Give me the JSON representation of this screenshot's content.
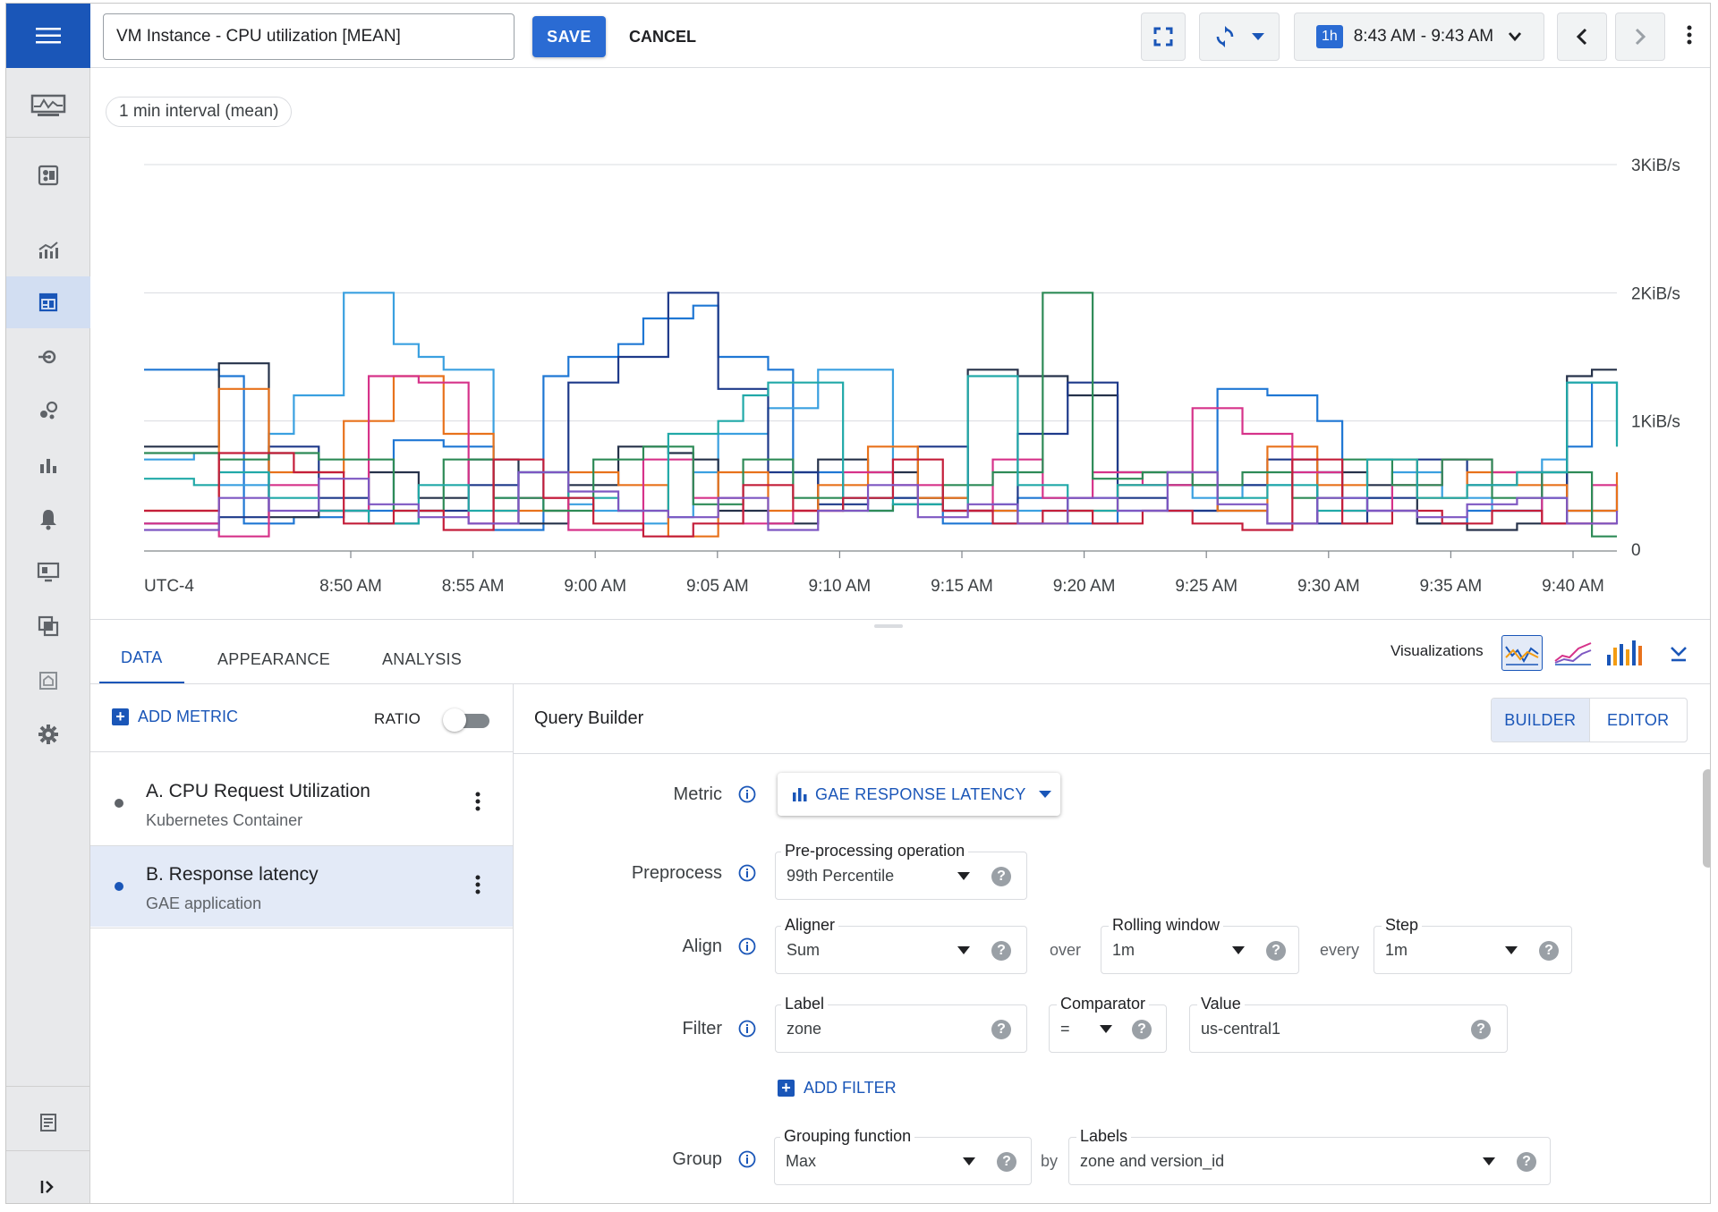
{
  "header": {
    "title_value": "VM Instance - CPU utilization [MEAN]",
    "save_label": "SAVE",
    "cancel_label": "CANCEL",
    "time_chip": "1h",
    "time_range": "8:43 AM - 9:43 AM"
  },
  "sidebar": {
    "items": [
      {
        "icon": "dashboard-icon"
      },
      {
        "icon": "metrics-explorer-icon"
      },
      {
        "icon": "dashboards-icon",
        "active": true
      },
      {
        "icon": "uptime-icon"
      },
      {
        "icon": "services-icon"
      },
      {
        "icon": "slo-icon"
      },
      {
        "icon": "alerting-icon"
      },
      {
        "icon": "monitor-icon"
      },
      {
        "icon": "groups-icon"
      },
      {
        "icon": "settings-home-icon"
      },
      {
        "icon": "settings-icon"
      }
    ],
    "bottom_icons": [
      "release-notes-icon",
      "collapse-icon"
    ]
  },
  "chart": {
    "interval_chip": "1 min interval (mean)"
  },
  "chart_data": {
    "type": "line",
    "title": "",
    "xlabel": "",
    "ylabel": "",
    "timezone_label": "UTC-4",
    "x_ticks": [
      "8:50 AM",
      "8:55 AM",
      "9:00 AM",
      "9:05 AM",
      "9:10 AM",
      "9:15 AM",
      "9:20 AM",
      "9:25 AM",
      "9:30 AM",
      "9:35 AM",
      "9:40 AM"
    ],
    "y_ticks": [
      "0",
      "1KiB/s",
      "2KiB/s",
      "3KiB/s"
    ],
    "ylim": [
      0,
      3
    ],
    "y_unit": "KiB/s",
    "x_unit_minutes_from": "8:43 AM",
    "grid": true,
    "step": true,
    "series": [
      {
        "color": "#1f77d4",
        "values": [
          1.4,
          1.4,
          1.4,
          1.35,
          0.2,
          0.2,
          0.25,
          0.25,
          0.3,
          0.3,
          0.85,
          0.85,
          0.8,
          0.8,
          0.15,
          0.15,
          1.35,
          1.5,
          1.5,
          1.6,
          1.8,
          1.8,
          1.9,
          1.5,
          1.5,
          1.4,
          0.6,
          0.6,
          0.4,
          0.3,
          0.35,
          0.35,
          0.2,
          0.2,
          0.2,
          0.4,
          0.4,
          0.2,
          0.2,
          0.3,
          0.3,
          0.3,
          0.3,
          1.25,
          1.25,
          1.2,
          1.2,
          1.0,
          0.4,
          0.3,
          0.3,
          0.2,
          0.2,
          0.3,
          0.3,
          0.3,
          0.4,
          0.8,
          1.3,
          1.3
        ]
      },
      {
        "color": "#3aa0e0",
        "values": [
          0.7,
          0.7,
          0.75,
          0.5,
          0.5,
          0.9,
          1.2,
          1.2,
          2.0,
          2.0,
          1.6,
          1.5,
          1.4,
          1.4,
          0.4,
          0.4,
          0.3,
          0.35,
          0.3,
          0.3,
          0.2,
          0.25,
          0.6,
          0.9,
          0.9,
          1.1,
          1.1,
          1.4,
          1.4,
          1.4,
          0.4,
          0.4,
          0.3,
          0.3,
          0.35,
          0.3,
          0.3,
          0.4,
          0.4,
          0.5,
          0.5,
          0.5,
          0.4,
          0.4,
          0.5,
          0.5,
          0.6,
          0.6,
          0.4,
          0.4,
          0.6,
          0.6,
          0.4,
          0.4,
          0.3,
          0.3,
          0.7,
          1.3,
          1.3,
          0.85
        ]
      },
      {
        "color": "#26324a",
        "values": [
          0.8,
          0.8,
          0.8,
          1.45,
          1.45,
          0.25,
          0.25,
          0.3,
          0.3,
          0.6,
          0.6,
          0.4,
          0.4,
          0.7,
          0.7,
          0.2,
          0.2,
          0.5,
          0.5,
          0.8,
          0.8,
          0.75,
          0.7,
          0.3,
          0.3,
          0.2,
          0.2,
          0.7,
          0.7,
          0.6,
          0.6,
          0.4,
          0.4,
          1.4,
          1.4,
          1.35,
          1.35,
          1.2,
          1.2,
          0.6,
          0.6,
          0.5,
          0.5,
          0.3,
          0.3,
          0.2,
          0.2,
          0.6,
          0.6,
          0.5,
          0.5,
          0.2,
          0.2,
          0.15,
          0.15,
          0.2,
          0.2,
          1.35,
          1.4,
          1.4
        ]
      },
      {
        "color": "#1e3a8a",
        "values": [
          0.2,
          0.2,
          0.2,
          0.25,
          0.25,
          0.8,
          0.8,
          0.4,
          0.4,
          0.2,
          0.2,
          0.3,
          0.3,
          0.5,
          0.5,
          0.6,
          0.6,
          1.3,
          1.3,
          1.5,
          1.5,
          2.0,
          2.0,
          1.25,
          1.25,
          0.6,
          0.6,
          0.35,
          0.35,
          0.4,
          0.4,
          0.8,
          0.8,
          0.3,
          0.3,
          0.9,
          0.9,
          1.3,
          1.3,
          0.4,
          0.4,
          0.3,
          0.3,
          0.5,
          0.5,
          0.7,
          0.7,
          0.2,
          0.2,
          0.4,
          0.4,
          0.7,
          0.7,
          0.5,
          0.5,
          0.6,
          0.6,
          0.3,
          0.3,
          0.5
        ]
      },
      {
        "color": "#e8721c",
        "values": [
          0.3,
          0.3,
          0.3,
          1.25,
          1.25,
          0.6,
          0.6,
          0.6,
          1.0,
          1.0,
          1.35,
          1.35,
          0.9,
          0.9,
          0.3,
          0.3,
          0.3,
          0.6,
          0.6,
          0.5,
          0.5,
          0.1,
          0.1,
          0.6,
          0.6,
          0.3,
          0.3,
          0.5,
          0.5,
          0.8,
          0.8,
          0.4,
          0.4,
          0.3,
          0.3,
          0.2,
          0.2,
          0.3,
          0.3,
          0.5,
          0.5,
          0.6,
          0.6,
          0.3,
          0.3,
          0.8,
          0.8,
          0.5,
          0.5,
          0.7,
          0.7,
          0.4,
          0.4,
          0.6,
          0.6,
          0.5,
          0.5,
          0.3,
          0.3,
          0.6
        ]
      },
      {
        "color": "#d6338a",
        "values": [
          0.2,
          0.2,
          0.2,
          0.1,
          0.1,
          0.5,
          0.5,
          0.3,
          0.3,
          1.35,
          1.35,
          1.3,
          1.3,
          0.2,
          0.2,
          0.4,
          0.4,
          0.15,
          0.15,
          0.15,
          0.7,
          0.7,
          0.4,
          0.4,
          0.2,
          0.2,
          0.3,
          0.3,
          0.6,
          0.6,
          0.5,
          0.5,
          0.3,
          0.3,
          0.7,
          0.7,
          0.4,
          0.4,
          0.6,
          0.6,
          0.5,
          0.5,
          1.1,
          1.1,
          0.9,
          0.9,
          0.6,
          0.6,
          0.3,
          0.3,
          0.5,
          0.5,
          0.7,
          0.7,
          0.6,
          0.6,
          0.2,
          0.2,
          0.5,
          0.5
        ]
      },
      {
        "color": "#2e8b57",
        "values": [
          0.75,
          0.75,
          0.75,
          0.7,
          0.7,
          0.75,
          0.75,
          0.7,
          0.7,
          0.7,
          0.3,
          0.3,
          0.7,
          0.7,
          0.4,
          0.4,
          0.3,
          0.3,
          0.7,
          0.7,
          0.8,
          0.8,
          0.35,
          0.35,
          0.7,
          0.7,
          0.4,
          0.4,
          0.3,
          0.3,
          0.35,
          0.35,
          0.5,
          0.5,
          0.6,
          0.6,
          2.0,
          2.0,
          0.55,
          0.55,
          0.6,
          0.6,
          0.5,
          0.5,
          0.6,
          0.6,
          0.4,
          0.4,
          0.7,
          0.7,
          0.5,
          0.5,
          0.7,
          0.7,
          0.4,
          0.4,
          0.6,
          0.6,
          0.1,
          0.1
        ]
      },
      {
        "color": "#21a9a8",
        "values": [
          0.55,
          0.55,
          0.5,
          0.6,
          0.6,
          0.4,
          0.4,
          0.3,
          0.3,
          0.2,
          0.2,
          0.5,
          0.5,
          0.3,
          0.3,
          0.6,
          0.6,
          0.4,
          0.4,
          0.3,
          0.3,
          0.9,
          0.9,
          1.0,
          1.2,
          1.3,
          1.3,
          1.3,
          0.4,
          0.4,
          0.35,
          0.35,
          0.3,
          1.35,
          1.35,
          0.5,
          0.5,
          0.3,
          0.3,
          0.5,
          0.5,
          0.6,
          0.6,
          0.4,
          0.4,
          0.5,
          0.5,
          0.3,
          0.3,
          0.7,
          0.7,
          0.4,
          0.4,
          0.5,
          0.5,
          0.6,
          0.6,
          1.3,
          1.3,
          0.8
        ]
      },
      {
        "color": "#c41e3a",
        "values": [
          0.3,
          0.3,
          0.3,
          0.75,
          0.75,
          0.75,
          0.6,
          0.6,
          0.2,
          0.2,
          0.3,
          0.3,
          0.15,
          0.15,
          0.7,
          0.7,
          0.4,
          0.4,
          0.2,
          0.2,
          0.1,
          0.1,
          0.2,
          0.2,
          0.5,
          0.5,
          0.3,
          0.3,
          0.4,
          0.4,
          0.7,
          0.7,
          0.3,
          0.3,
          0.2,
          0.2,
          0.3,
          0.3,
          0.2,
          0.2,
          0.3,
          0.3,
          0.2,
          0.2,
          0.15,
          0.15,
          0.7,
          0.7,
          0.2,
          0.2,
          0.3,
          0.3,
          0.2,
          0.2,
          0.3,
          0.3,
          0.2,
          0.2,
          0.2,
          0.2
        ]
      },
      {
        "color": "#7e57c2",
        "values": [
          0.15,
          0.15,
          0.15,
          0.4,
          0.4,
          0.3,
          0.3,
          0.55,
          0.55,
          0.35,
          0.35,
          0.25,
          0.25,
          0.2,
          0.2,
          0.6,
          0.6,
          0.45,
          0.45,
          0.3,
          0.3,
          0.25,
          0.25,
          0.4,
          0.4,
          0.15,
          0.15,
          0.3,
          0.3,
          0.5,
          0.5,
          0.25,
          0.25,
          0.35,
          0.35,
          0.2,
          0.2,
          0.4,
          0.4,
          0.3,
          0.3,
          0.6,
          0.6,
          0.35,
          0.35,
          0.2,
          0.2,
          0.4,
          0.4,
          0.3,
          0.3,
          0.25,
          0.25,
          0.35,
          0.35,
          0.4,
          0.4,
          0.2,
          0.2,
          0.3
        ]
      }
    ]
  },
  "tabs": [
    {
      "label": "DATA",
      "active": true
    },
    {
      "label": "APPEARANCE",
      "active": false
    },
    {
      "label": "ANALYSIS",
      "active": false
    }
  ],
  "visualizations": {
    "label": "Visualizations",
    "options": [
      "line-chart-icon",
      "stacked-area-icon",
      "stacked-bar-icon"
    ]
  },
  "metrics_panel": {
    "add_metric_label": "ADD METRIC",
    "ratio_label": "RATIO",
    "ratio_on": false,
    "items": [
      {
        "title": "A. CPU Request Utilization",
        "subtitle": "Kubernetes Container",
        "dot_color": "#5f6368",
        "selected": false
      },
      {
        "title": "B. Response latency",
        "subtitle": "GAE application",
        "dot_color": "#1a56b8",
        "selected": true
      }
    ]
  },
  "query_builder": {
    "title": "Query Builder",
    "mode_builder": "BUILDER",
    "mode_editor": "EDITOR",
    "metric_label": "Metric",
    "metric_value": "GAE RESPONSE LATENCY",
    "preprocess_label": "Preprocess",
    "preprocess_field_label": "Pre-processing operation",
    "preprocess_value": "99th Percentile",
    "align_label": "Align",
    "aligner_label": "Aligner",
    "aligner_value": "Sum",
    "over_label": "over",
    "rolling_window_label": "Rolling window",
    "rolling_window_value": "1m",
    "every_label": "every",
    "step_label": "Step",
    "step_value": "1m",
    "filter_label": "Filter",
    "filter_label_field": "Label",
    "filter_label_value": "zone",
    "comparator_label": "Comparator",
    "comparator_value": "=",
    "value_label": "Value",
    "value_value": "us-central1",
    "add_filter_label": "ADD FILTER",
    "group_label": "Group",
    "grouping_function_label": "Grouping function",
    "grouping_function_value": "Max",
    "by_label": "by",
    "labels_label": "Labels",
    "labels_value": "zone and version_id",
    "help_glyph": "?"
  }
}
